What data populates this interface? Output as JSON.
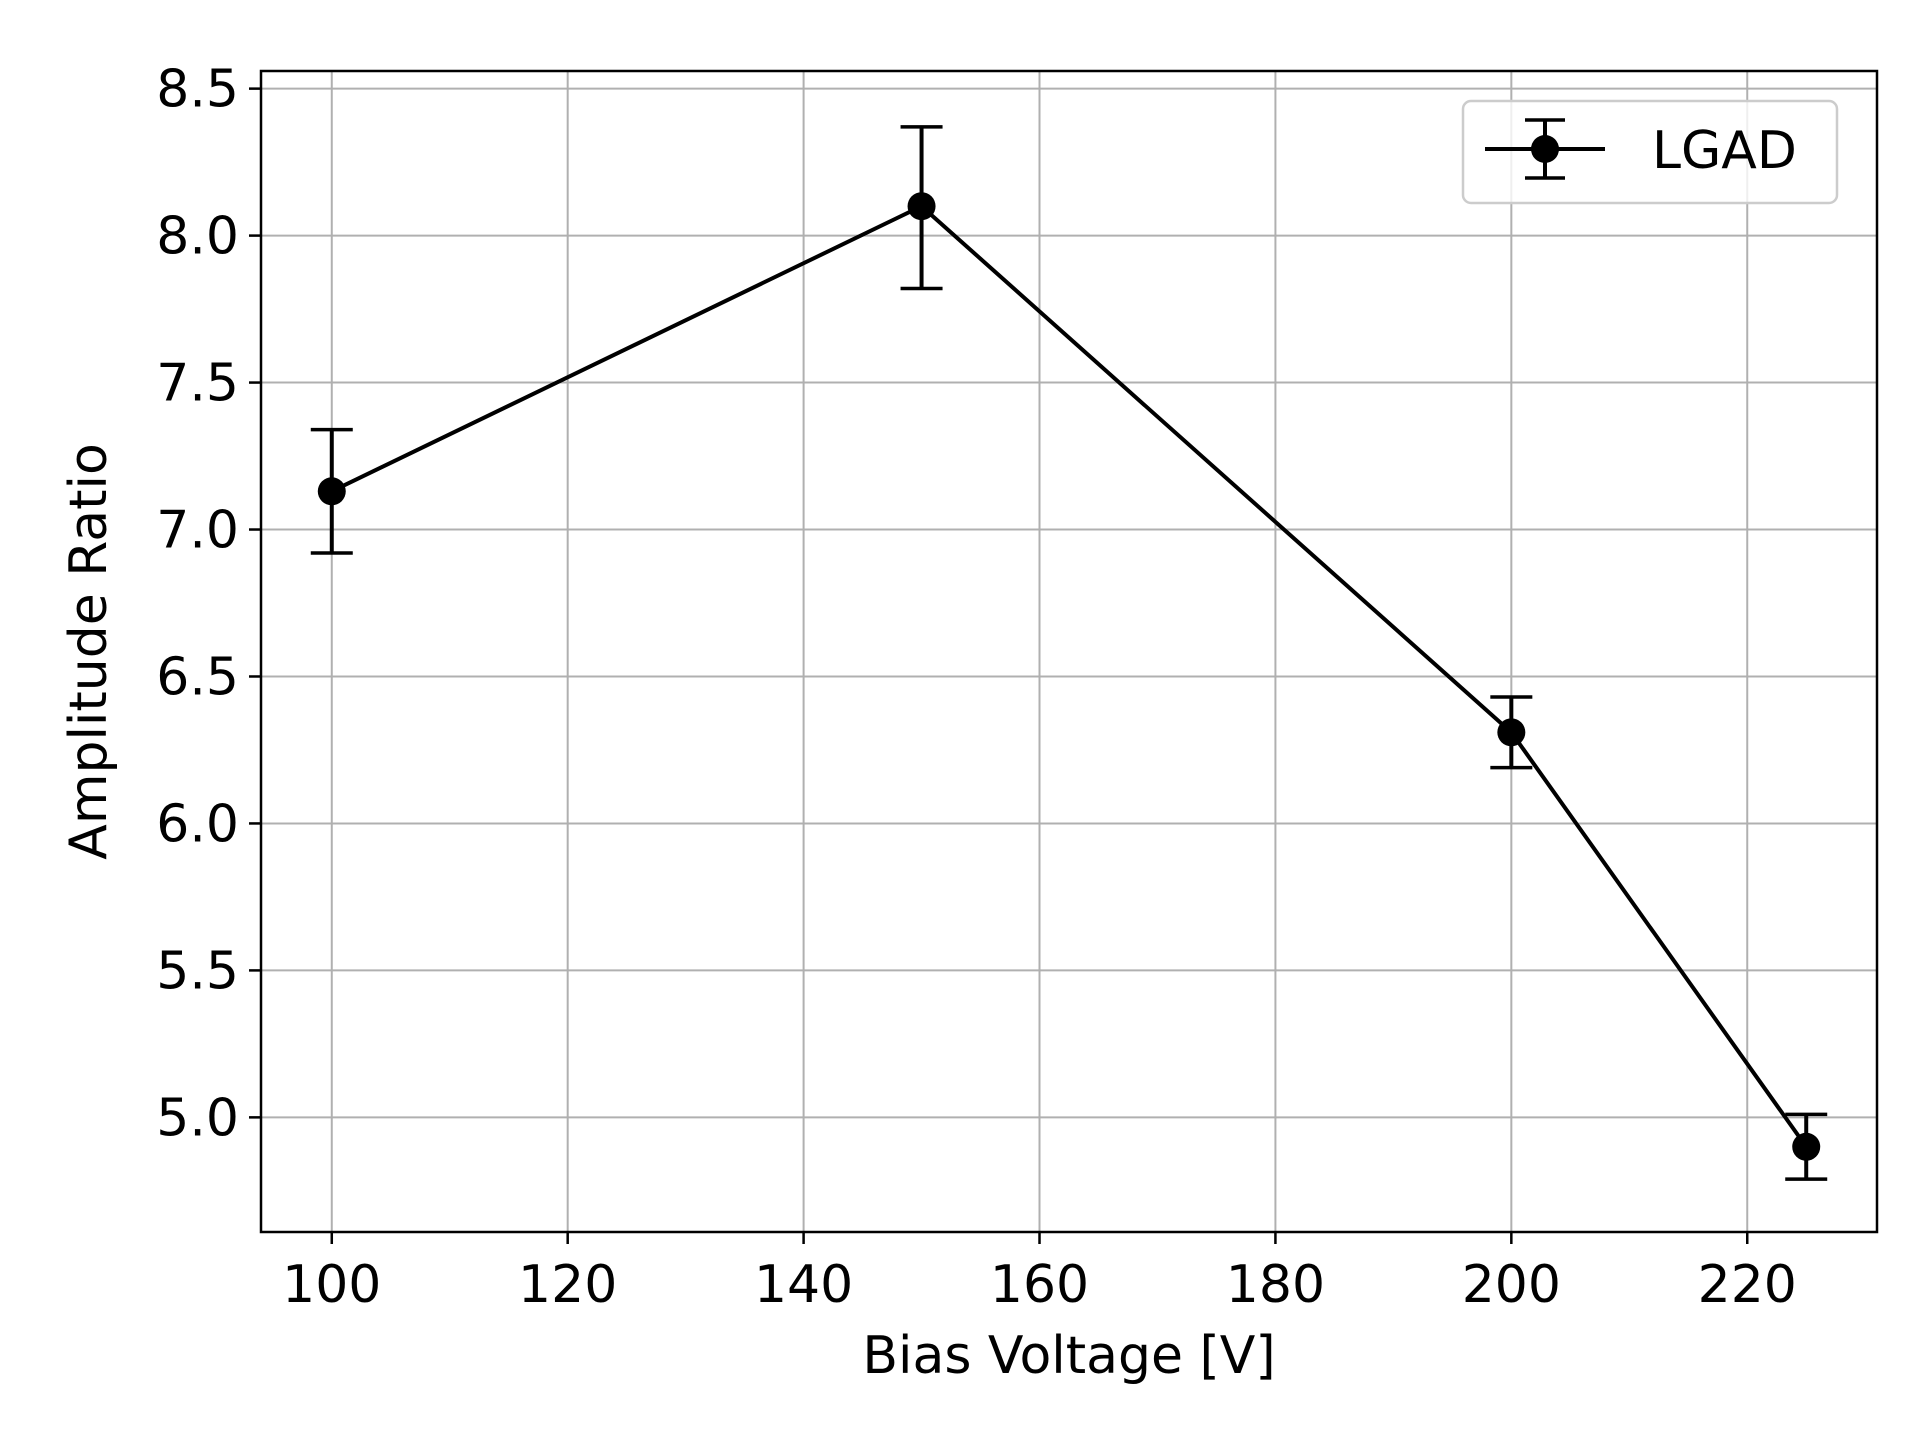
{
  "chart_data": {
    "type": "line",
    "xlabel": "Bias Voltage [V]",
    "ylabel": "Amplitude Ratio",
    "xlim": [
      94,
      231
    ],
    "ylim": [
      4.61,
      8.56
    ],
    "xticks": [
      100,
      120,
      140,
      160,
      180,
      200,
      220
    ],
    "yticks": [
      5.0,
      5.5,
      6.0,
      6.5,
      7.0,
      7.5,
      8.0,
      8.5
    ],
    "xtick_labels": [
      "100",
      "120",
      "140",
      "160",
      "180",
      "200",
      "220"
    ],
    "ytick_labels": [
      "5.0",
      "5.5",
      "6.0",
      "6.5",
      "7.0",
      "7.5",
      "8.0",
      "8.5"
    ],
    "grid": true,
    "legend_position": "top-right",
    "series": [
      {
        "name": "LGAD",
        "color": "#000000",
        "marker": "circle",
        "x": [
          100,
          150,
          200,
          225
        ],
        "y": [
          7.13,
          8.1,
          6.31,
          4.9
        ],
        "yerr_low": [
          6.92,
          7.82,
          6.19,
          4.79
        ],
        "yerr_high": [
          7.34,
          8.37,
          6.43,
          5.01
        ]
      }
    ]
  }
}
